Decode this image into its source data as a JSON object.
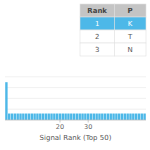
{
  "chart_data": {
    "type": "bar",
    "xlabel": "Signal Rank (Top 50)",
    "x": [
      1,
      2,
      3,
      4,
      5,
      6,
      7,
      8,
      9,
      10,
      11,
      12,
      13,
      14,
      15,
      16,
      17,
      18,
      19,
      20,
      21,
      22,
      23,
      24,
      25,
      26,
      27,
      28,
      29,
      30,
      31,
      32,
      33,
      34,
      35,
      36,
      37,
      38,
      39,
      40,
      41,
      42,
      43,
      44,
      45,
      46,
      47,
      48,
      49,
      50
    ],
    "values": [
      3.5,
      0.6,
      0.6,
      0.6,
      0.6,
      0.6,
      0.6,
      0.6,
      0.6,
      0.6,
      0.6,
      0.6,
      0.6,
      0.6,
      0.6,
      0.6,
      0.6,
      0.6,
      0.6,
      0.6,
      0.6,
      0.6,
      0.6,
      0.6,
      0.6,
      0.6,
      0.6,
      0.6,
      0.6,
      0.6,
      0.6,
      0.6,
      0.6,
      0.6,
      0.6,
      0.6,
      0.6,
      0.6,
      0.6,
      0.6,
      0.6,
      0.6,
      0.6,
      0.6,
      0.6,
      0.6,
      0.6,
      0.6,
      0.6,
      0.6
    ],
    "color": "#4db8e8",
    "xlim": [
      0.5,
      50.5
    ],
    "xticks": [
      20,
      30
    ],
    "ylim": [
      0,
      5
    ],
    "yticks": [
      1,
      2,
      3,
      4
    ],
    "tick_labels": "x",
    "grid": true,
    "table": {
      "columns": [
        "Rank",
        "P"
      ],
      "rows": [
        [
          "1",
          "K"
        ],
        [
          "2",
          "T"
        ],
        [
          "3",
          "N"
        ]
      ]
    }
  }
}
